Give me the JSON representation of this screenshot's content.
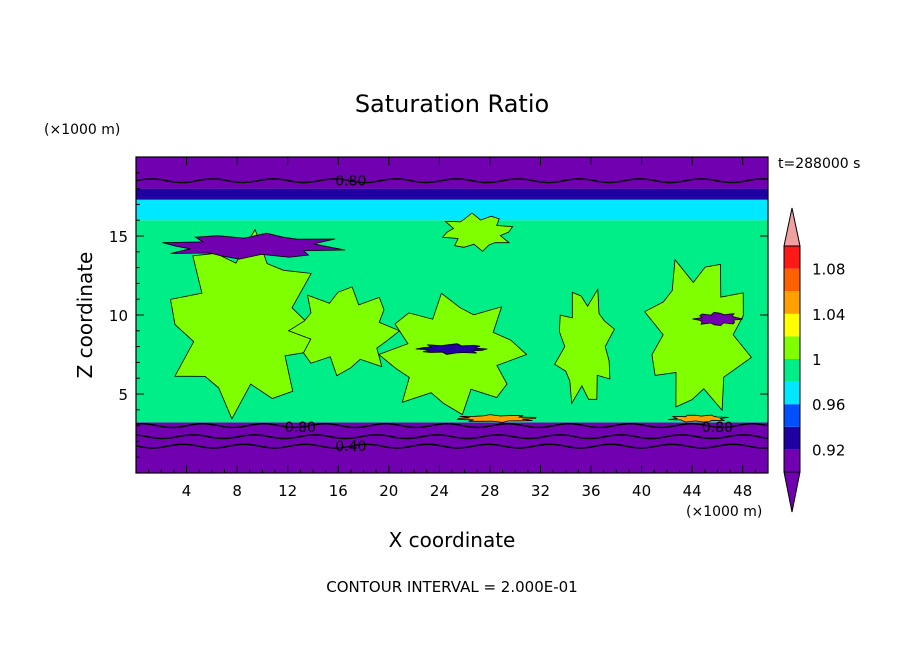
{
  "chart_data": {
    "type": "heatmap",
    "title": "Saturation Ratio",
    "xlabel": "X coordinate",
    "ylabel": "Z coordinate",
    "x_unit": "(×1000 m)",
    "y_unit": "(×1000 m)",
    "time_label": "t=288000 s",
    "footer": "CONTOUR INTERVAL = 2.000E-01",
    "xlim": [
      0,
      50
    ],
    "ylim": [
      0,
      20
    ],
    "x_ticks": [
      4,
      8,
      12,
      16,
      20,
      24,
      28,
      32,
      36,
      40,
      44,
      48
    ],
    "y_ticks": [
      5,
      10,
      15
    ],
    "contour_labels": [
      {
        "text": "0.80",
        "x": 17,
        "z": 18.5
      },
      {
        "text": "0.80",
        "x": 13,
        "z": 2.9
      },
      {
        "text": "0.80",
        "x": 46,
        "z": 2.9
      },
      {
        "text": "0.40",
        "x": 17,
        "z": 1.7
      }
    ],
    "colorbar": {
      "levels": [
        0.9,
        0.92,
        0.94,
        0.96,
        0.98,
        1.0,
        1.02,
        1.04,
        1.06,
        1.08,
        1.1
      ],
      "labels": [
        "0.92",
        "0.96",
        "1",
        "1.04",
        "1.08"
      ],
      "label_values": [
        0.92,
        0.96,
        1.0,
        1.04,
        1.08
      ],
      "colors": [
        "#7000b0",
        "#2000a0",
        "#0050ff",
        "#00e8ff",
        "#00ee88",
        "#80ff00",
        "#ffff00",
        "#ffa000",
        "#ff6000",
        "#ff1818"
      ],
      "under_color": "#7000b0",
      "over_color": "#f0a0a0"
    },
    "field_bands": [
      {
        "z": [
          0,
          3.2
        ],
        "value": 0.88
      },
      {
        "z": [
          3.2,
          16.0
        ],
        "value": 0.99
      },
      {
        "z": [
          16.0,
          17.3
        ],
        "value": 0.96
      },
      {
        "z": [
          17.3,
          18.0
        ],
        "value": 0.93
      },
      {
        "z": [
          18.0,
          20
        ],
        "value": 0.88
      }
    ],
    "field_patches": [
      {
        "x": [
          2,
          15
        ],
        "z": [
          3.3,
          15.5
        ],
        "value": 1.01
      },
      {
        "x": [
          12,
          21
        ],
        "z": [
          6,
          12
        ],
        "value": 1.01
      },
      {
        "x": [
          19,
          31
        ],
        "z": [
          3.5,
          11.5
        ],
        "value": 1.01
      },
      {
        "x": [
          24,
          30
        ],
        "z": [
          14,
          16.5
        ],
        "value": 1.01
      },
      {
        "x": [
          33,
          38
        ],
        "z": [
          4,
          12
        ],
        "value": 1.01
      },
      {
        "x": [
          40,
          49
        ],
        "z": [
          3.5,
          14
        ],
        "value": 1.01
      },
      {
        "x": [
          1.5,
          17
        ],
        "z": [
          13.5,
          15.2
        ],
        "value": 0.89
      },
      {
        "x": [
          22,
          28
        ],
        "z": [
          7.5,
          8.2
        ],
        "value": 0.93
      },
      {
        "x": [
          44,
          48
        ],
        "z": [
          9.3,
          10.2
        ],
        "value": 0.89
      },
      {
        "x": [
          25,
          32
        ],
        "z": [
          3.2,
          3.7
        ],
        "value": 1.05
      },
      {
        "x": [
          42,
          47
        ],
        "z": [
          3.2,
          3.7
        ],
        "value": 1.05
      }
    ]
  }
}
